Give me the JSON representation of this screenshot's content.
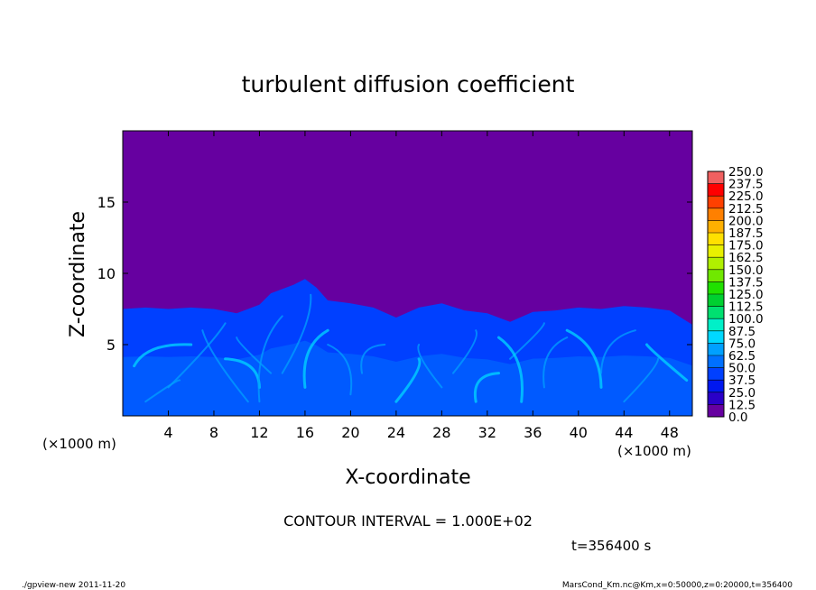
{
  "chart_data": {
    "type": "heatmap",
    "title": "turbulent diffusion coefficient",
    "xlabel": "X-coordinate",
    "ylabel": "Z-coordinate",
    "x_unit": "(×1000 m)",
    "y_unit": "(×1000 m)",
    "xlim": [
      0,
      50
    ],
    "ylim": [
      0,
      20
    ],
    "x_ticks": [
      4,
      8,
      12,
      16,
      20,
      24,
      28,
      32,
      36,
      40,
      44,
      48
    ],
    "y_ticks": [
      5,
      10,
      15
    ],
    "background_value": 0.0,
    "colorbar": {
      "levels": [
        "0.0",
        "12.5",
        "25.0",
        "37.5",
        "50.0",
        "62.5",
        "75.0",
        "87.5",
        "100.0",
        "112.5",
        "125.0",
        "137.5",
        "150.0",
        "162.5",
        "175.0",
        "187.5",
        "200.0",
        "212.5",
        "225.0",
        "237.5",
        "250.0"
      ],
      "colors": [
        "#6600a0",
        "#2a00c8",
        "#0018f0",
        "#0040ff",
        "#0070ff",
        "#00a0ff",
        "#00d8ff",
        "#00f0c8",
        "#00e070",
        "#00d030",
        "#20e000",
        "#70e800",
        "#b0f000",
        "#e8f000",
        "#ffe000",
        "#ffb000",
        "#ff8000",
        "#ff4000",
        "#ff0000",
        "#f06060",
        "#f4a0a0"
      ]
    },
    "mixed_layer_top": [
      [
        0,
        7.5
      ],
      [
        2,
        7.6
      ],
      [
        4,
        7.5
      ],
      [
        6,
        7.6
      ],
      [
        8,
        7.5
      ],
      [
        10,
        7.2
      ],
      [
        12,
        7.8
      ],
      [
        13,
        8.6
      ],
      [
        14,
        8.9
      ],
      [
        15,
        9.2
      ],
      [
        16,
        9.6
      ],
      [
        17,
        9.0
      ],
      [
        18,
        8.1
      ],
      [
        20,
        7.9
      ],
      [
        22,
        7.6
      ],
      [
        24,
        6.9
      ],
      [
        26,
        7.6
      ],
      [
        28,
        7.9
      ],
      [
        30,
        7.4
      ],
      [
        32,
        7.2
      ],
      [
        34,
        6.6
      ],
      [
        36,
        7.3
      ],
      [
        38,
        7.4
      ],
      [
        40,
        7.6
      ],
      [
        42,
        7.5
      ],
      [
        44,
        7.7
      ],
      [
        46,
        7.6
      ],
      [
        48,
        7.4
      ],
      [
        50,
        6.4
      ]
    ],
    "interval_note": "CONTOUR INTERVAL = 1.000E+02",
    "time_label": "t=356400 s"
  },
  "footer": {
    "left": "./gpview-new   2011-11-20",
    "right": "MarsCond_Km.nc@Km,x=0:50000,z=0:20000,t=356400"
  }
}
